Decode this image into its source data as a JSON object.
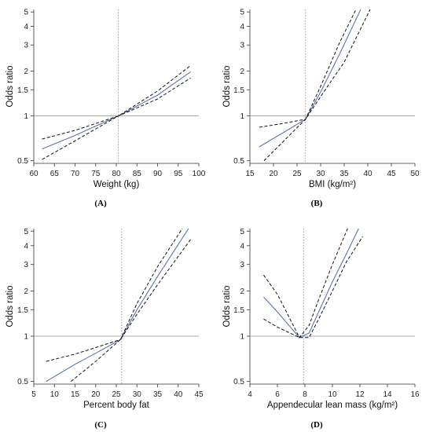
{
  "chart_data": [
    {
      "type": "line",
      "panel_label": "(A)",
      "xlabel": "Weight (kg)",
      "ylabel": "Odds ratio",
      "y_scale": "log",
      "xlim": [
        60,
        100
      ],
      "ylim": [
        0.48,
        5.2
      ],
      "x_ticks": [
        "60",
        "65",
        "70",
        "75",
        "80",
        "85",
        "90",
        "95",
        "100"
      ],
      "y_ticks": [
        "0.5",
        "1",
        "1.5",
        "2",
        "3",
        "4",
        "5"
      ],
      "reference_line_y": 1,
      "reference_line_x": 80.5,
      "series": [
        {
          "role": "estimate",
          "x": [
            62,
            70,
            80.5,
            90,
            98
          ],
          "y": [
            0.6,
            0.74,
            1.0,
            1.38,
            1.98
          ]
        },
        {
          "role": "upper",
          "x": [
            62,
            70,
            80.5,
            90,
            98
          ],
          "y": [
            0.7,
            0.8,
            1.0,
            1.47,
            2.18
          ]
        },
        {
          "role": "lower",
          "x": [
            62,
            70,
            80.5,
            90,
            98
          ],
          "y": [
            0.51,
            0.68,
            1.0,
            1.3,
            1.8
          ]
        }
      ]
    },
    {
      "type": "line",
      "panel_label": "(B)",
      "xlabel": "BMI (kg/m²)",
      "ylabel": "Odds ratio",
      "y_scale": "log",
      "xlim": [
        15,
        50
      ],
      "ylim": [
        0.48,
        5.2
      ],
      "x_ticks": [
        "15",
        "20",
        "25",
        "30",
        "35",
        "40",
        "45",
        "50"
      ],
      "y_ticks": [
        "0.5",
        "1",
        "1.5",
        "2",
        "3",
        "4",
        "5"
      ],
      "reference_line_y": 1,
      "reference_line_x": 26.8,
      "series": [
        {
          "role": "estimate",
          "x": [
            17,
            22,
            26.8,
            30,
            34,
            38.5
          ],
          "y": [
            0.62,
            0.77,
            0.95,
            1.45,
            2.6,
            5.2
          ]
        },
        {
          "role": "upper",
          "x": [
            17,
            22,
            26.8,
            30,
            34,
            37.5
          ],
          "y": [
            0.84,
            0.89,
            0.95,
            1.58,
            3.1,
            5.2
          ]
        },
        {
          "role": "lower",
          "x": [
            18,
            22,
            26.8,
            30,
            35,
            40.5
          ],
          "y": [
            0.5,
            0.67,
            0.95,
            1.35,
            2.3,
            5.2
          ]
        }
      ]
    },
    {
      "type": "line",
      "panel_label": "(C)",
      "xlabel": "Percent body fat",
      "ylabel": "Odds ratio",
      "y_scale": "log",
      "xlim": [
        5,
        45
      ],
      "ylim": [
        0.48,
        5.2
      ],
      "x_ticks": [
        "5",
        "10",
        "15",
        "20",
        "25",
        "30",
        "35",
        "40",
        "45"
      ],
      "y_ticks": [
        "0.5",
        "1",
        "1.5",
        "2",
        "3",
        "4",
        "5"
      ],
      "reference_line_y": 1,
      "reference_line_x": 26.3,
      "series": [
        {
          "role": "estimate",
          "x": [
            8,
            15,
            20,
            26,
            30,
            35,
            42.5
          ],
          "y": [
            0.5,
            0.65,
            0.77,
            0.95,
            1.5,
            2.5,
            5.2
          ]
        },
        {
          "role": "upper",
          "x": [
            8,
            15,
            20,
            26,
            30,
            35,
            41
          ],
          "y": [
            0.68,
            0.76,
            0.84,
            0.95,
            1.65,
            2.9,
            5.2
          ]
        },
        {
          "role": "lower",
          "x": [
            14,
            20,
            26,
            30,
            35,
            43
          ],
          "y": [
            0.5,
            0.68,
            0.95,
            1.4,
            2.2,
            4.4
          ]
        }
      ]
    },
    {
      "type": "line",
      "panel_label": "(D)",
      "xlabel": "Appendecular lean mass (kg/m²)",
      "ylabel": "Odds ratio",
      "y_scale": "log",
      "xlim": [
        4,
        16
      ],
      "ylim": [
        0.48,
        5.2
      ],
      "x_ticks": [
        "4",
        "6",
        "8",
        "10",
        "12",
        "14",
        "16"
      ],
      "y_ticks": [
        "0.5",
        "1",
        "1.5",
        "2",
        "3",
        "4",
        "5"
      ],
      "reference_line_y": 1,
      "reference_line_x": 7.9,
      "series": [
        {
          "role": "estimate",
          "x": [
            5,
            6,
            7.6,
            8.3,
            9,
            10,
            11,
            11.9
          ],
          "y": [
            1.82,
            1.45,
            0.98,
            1.05,
            1.45,
            2.3,
            3.5,
            5.2
          ]
        },
        {
          "role": "upper",
          "x": [
            5,
            6,
            7.6,
            8.3,
            9,
            10,
            11.1
          ],
          "y": [
            2.55,
            1.9,
            0.98,
            1.18,
            1.75,
            3.0,
            5.2
          ]
        },
        {
          "role": "lower",
          "x": [
            5,
            6,
            7.6,
            8.3,
            9,
            10,
            11,
            12.2
          ],
          "y": [
            1.3,
            1.15,
            0.98,
            0.98,
            1.3,
            2.0,
            3.1,
            4.6
          ]
        }
      ]
    }
  ],
  "colors": {
    "estimate": "#5b73b0",
    "ci": "#111111",
    "reference": "#8c8c8c",
    "axis": "#333333"
  }
}
